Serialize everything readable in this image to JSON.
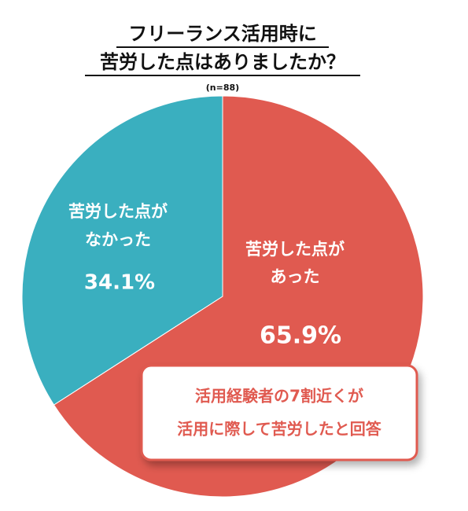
{
  "chart_data": {
    "type": "pie",
    "title": [
      "フリーランス活用時に",
      "苦労した点はありましたか？"
    ],
    "subtitle": "(n=88)",
    "categories": [
      [
        "苦労した点が",
        "あった"
      ],
      [
        "苦労した点が",
        "なかった"
      ]
    ],
    "values": [
      65.9,
      34.1
    ],
    "value_labels": [
      "65.9%",
      "34.1%"
    ],
    "colors": [
      "#e05a50",
      "#3aafbf"
    ],
    "annotation": [
      "活用経験者の7割近くが",
      "活用に際して苦労したと回答"
    ],
    "annotation_color": "#e05a50"
  }
}
